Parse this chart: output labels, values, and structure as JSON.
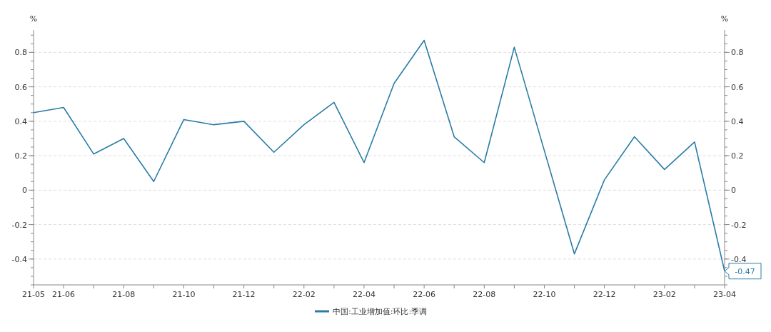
{
  "chart_data": {
    "type": "line",
    "categories": [
      "21-05",
      "21-06",
      null,
      "21-08",
      null,
      "21-10",
      null,
      "21-12",
      null,
      "22-02",
      null,
      "22-04",
      null,
      "22-06",
      null,
      "22-08",
      null,
      "22-10",
      null,
      "22-12",
      null,
      "23-02",
      null,
      "23-04"
    ],
    "series": [
      {
        "name": "中国:工业增加值:环比:季调",
        "color": "#2a7ca6",
        "values": [
          0.45,
          0.48,
          0.21,
          0.3,
          0.05,
          0.41,
          0.38,
          0.4,
          0.22,
          0.38,
          0.51,
          0.16,
          0.62,
          0.87,
          0.31,
          0.16,
          0.83,
          0.23,
          -0.37,
          0.06,
          0.31,
          0.12,
          0.28,
          -0.47
        ],
        "value_labels": [
          null,
          null,
          null,
          null,
          null,
          null,
          null,
          null,
          null,
          null,
          null,
          null,
          null,
          null,
          null,
          null,
          null,
          null,
          null,
          null,
          null,
          null,
          null,
          "-0.47"
        ]
      }
    ],
    "ylabel": "%",
    "y2label": "%",
    "ylim": [
      -0.55,
      0.93
    ],
    "yticks": [
      {
        "value": -0.4,
        "label": "-0.4"
      },
      {
        "value": -0.2,
        "label": "-0.2"
      },
      0,
      0.2,
      0.4,
      0.6,
      0.8
    ],
    "y2lim": [
      -0.55,
      0.93
    ],
    "y2ticks": [
      {
        "value": -0.4,
        "label": "-0.4"
      },
      {
        "value": -0.2,
        "label": "-0.2"
      },
      0,
      0.2,
      0.4,
      0.6,
      0.8
    ],
    "grid": "y",
    "legend": "bottom"
  }
}
